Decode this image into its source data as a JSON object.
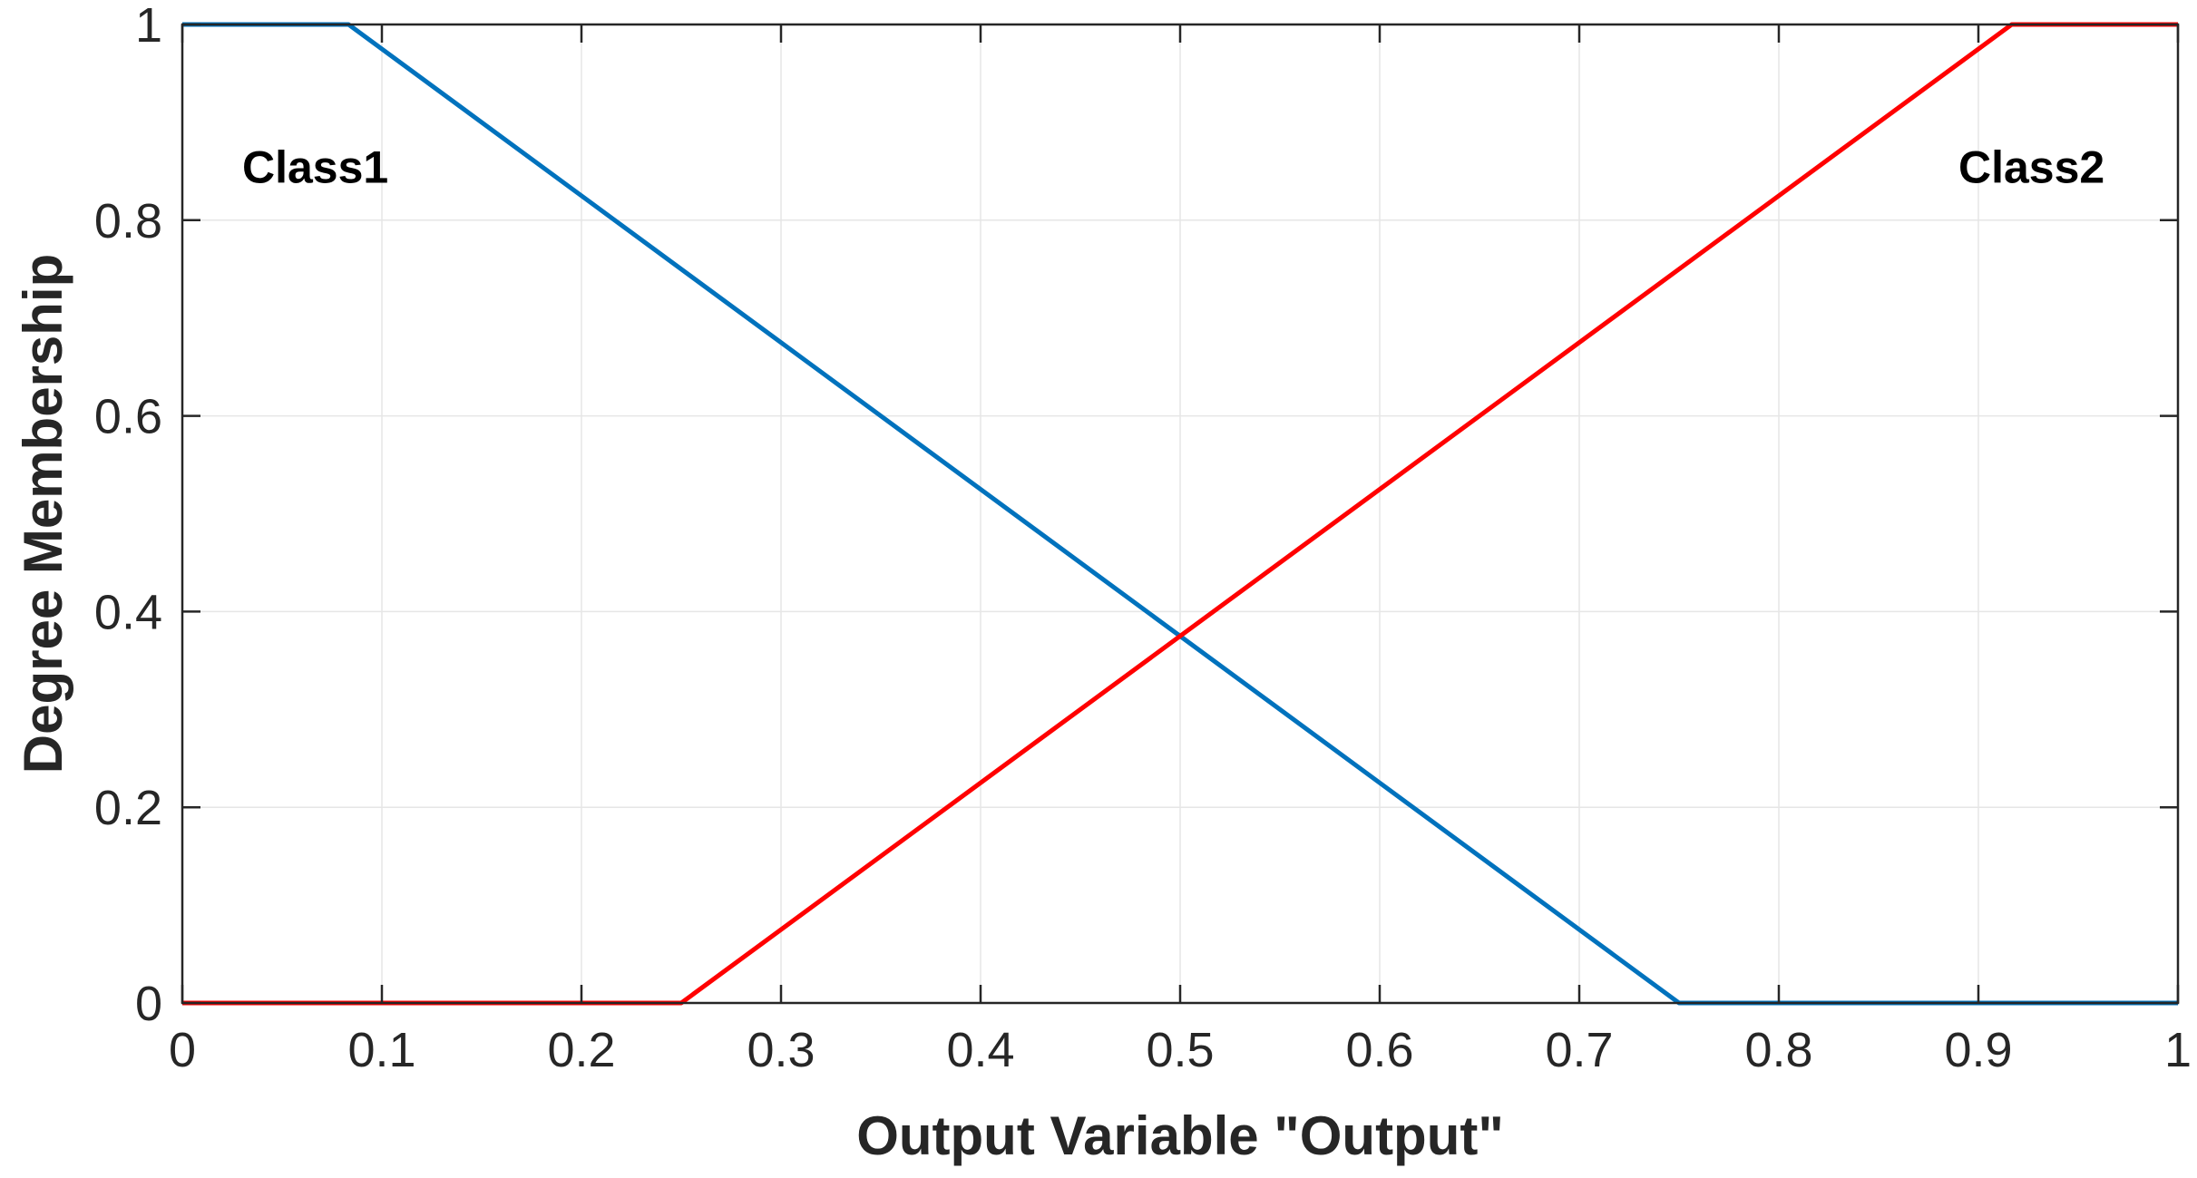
{
  "chart_data": {
    "type": "line",
    "title": "",
    "xlabel": "Output Variable \"Output\"",
    "ylabel": "Degree Membership",
    "xlim": [
      0,
      1
    ],
    "ylim": [
      0,
      1
    ],
    "grid": true,
    "x_ticks": [
      "0",
      "0.1",
      "0.2",
      "0.3",
      "0.4",
      "0.5",
      "0.6",
      "0.7",
      "0.8",
      "0.9",
      "1"
    ],
    "y_ticks": [
      "0",
      "0.2",
      "0.4",
      "0.6",
      "0.8",
      "1"
    ],
    "series": [
      {
        "label": "Class1",
        "color": "#0072bd",
        "points": [
          [
            0,
            1
          ],
          [
            0.0833,
            1
          ],
          [
            0.75,
            0
          ],
          [
            1,
            0
          ]
        ],
        "label_at": [
          0.03,
          0.855
        ]
      },
      {
        "label": "Class2",
        "color": "#ff0000",
        "points": [
          [
            0,
            0
          ],
          [
            0.25,
            0
          ],
          [
            0.9167,
            1
          ],
          [
            1,
            1
          ]
        ],
        "label_at": [
          0.89,
          0.855
        ]
      }
    ]
  }
}
